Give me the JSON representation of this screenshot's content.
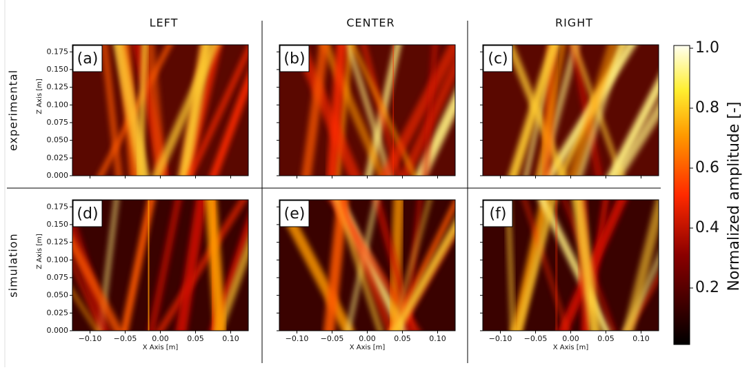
{
  "columns": [
    "LEFT",
    "CENTER",
    "RIGHT"
  ],
  "rows": [
    "experimental",
    "simulation"
  ],
  "panels": [
    "(a)",
    "(b)",
    "(c)",
    "(d)",
    "(e)",
    "(f)"
  ],
  "x_label": "X Axis [m]",
  "y_label": "Z Axis [m]",
  "xlim": [
    -0.125,
    0.125
  ],
  "xticks": [
    {
      "value": -0.1,
      "label": "−0.10"
    },
    {
      "value": -0.05,
      "label": "−0.05"
    },
    {
      "value": 0,
      "label": "0.00"
    },
    {
      "value": 0.05,
      "label": "0.05"
    },
    {
      "value": 0.1,
      "label": "0.10"
    }
  ],
  "ylim": [
    0,
    0.185
  ],
  "yticks": [
    {
      "value": 0,
      "label": "0.000"
    },
    {
      "value": 0.025,
      "label": "0.025"
    },
    {
      "value": 0.05,
      "label": "0.050"
    },
    {
      "value": 0.075,
      "label": "0.075"
    },
    {
      "value": 0.1,
      "label": "0.100"
    },
    {
      "value": 0.125,
      "label": "0.125"
    },
    {
      "value": 0.15,
      "label": "0.150"
    },
    {
      "value": 0.175,
      "label": "0.175"
    }
  ],
  "colorbar": {
    "label": "Normalized amplitude [-]",
    "lim": [
      0,
      1
    ],
    "ticks": [
      0.2,
      0.4,
      0.6,
      0.8,
      {
        "value": 1,
        "label": "1.0"
      }
    ]
  }
}
